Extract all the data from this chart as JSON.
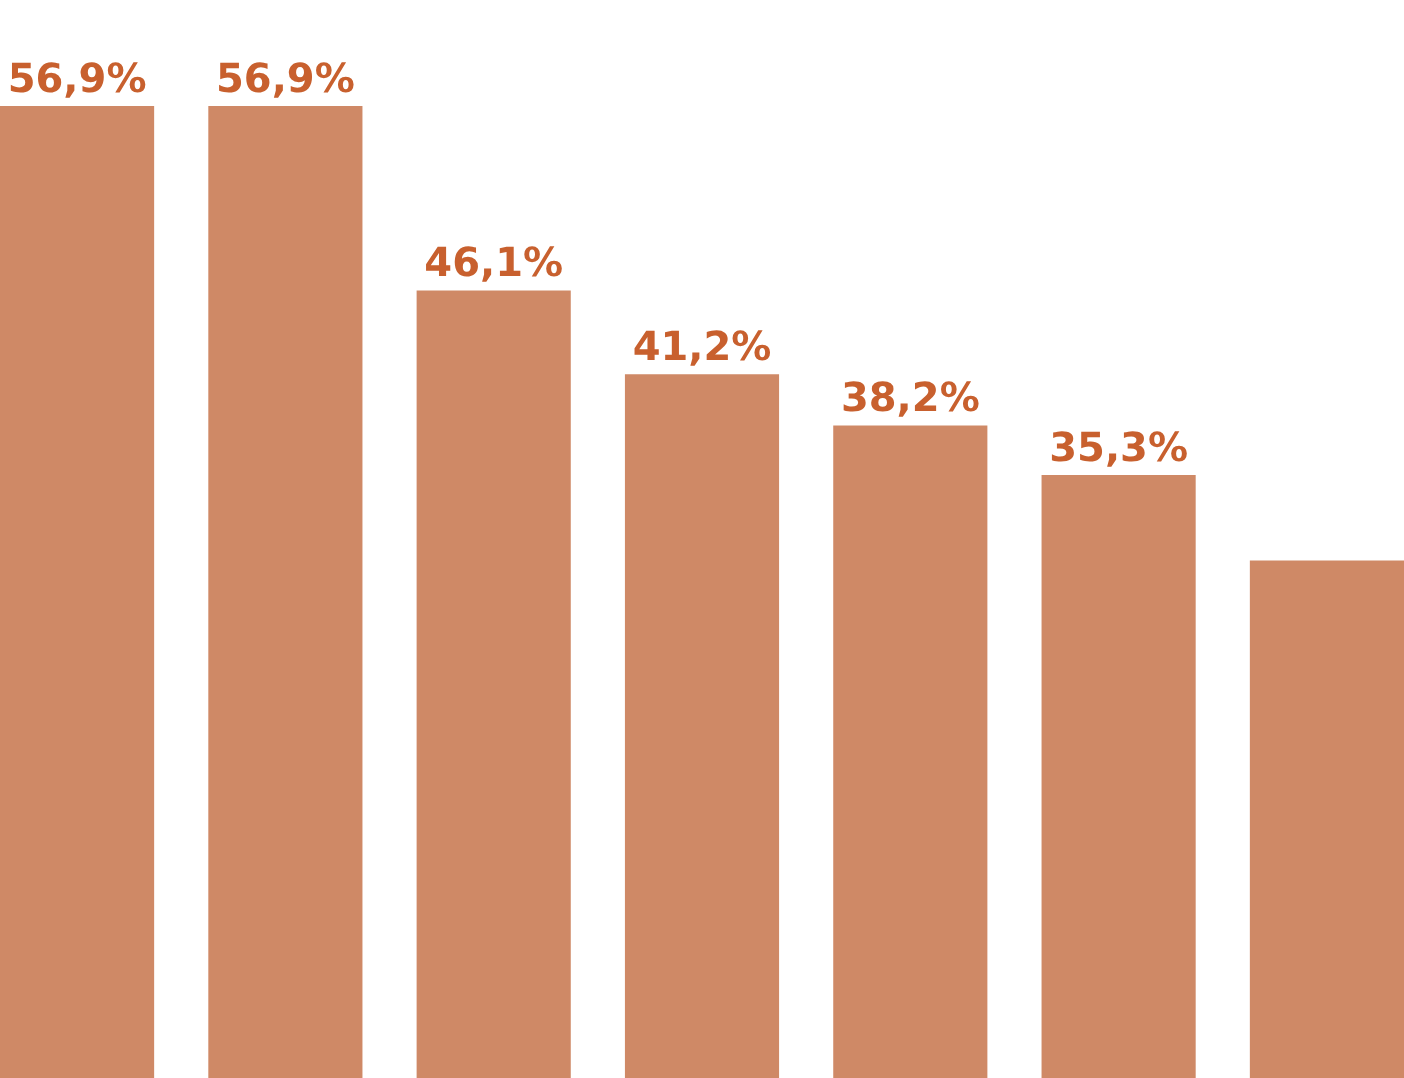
{
  "chart_data": {
    "type": "bar",
    "categories": [
      null,
      null,
      null,
      null,
      null,
      null,
      null
    ],
    "values": [
      56.9,
      56.9,
      46.1,
      41.2,
      38.2,
      35.3,
      30.3
    ],
    "value_labels": [
      "56,9%",
      "56,9%",
      "46,1%",
      "41,2%",
      "38,2%",
      "35,3%",
      null
    ],
    "color": "#cf8966",
    "tick_labels": false,
    "grid": false
  }
}
